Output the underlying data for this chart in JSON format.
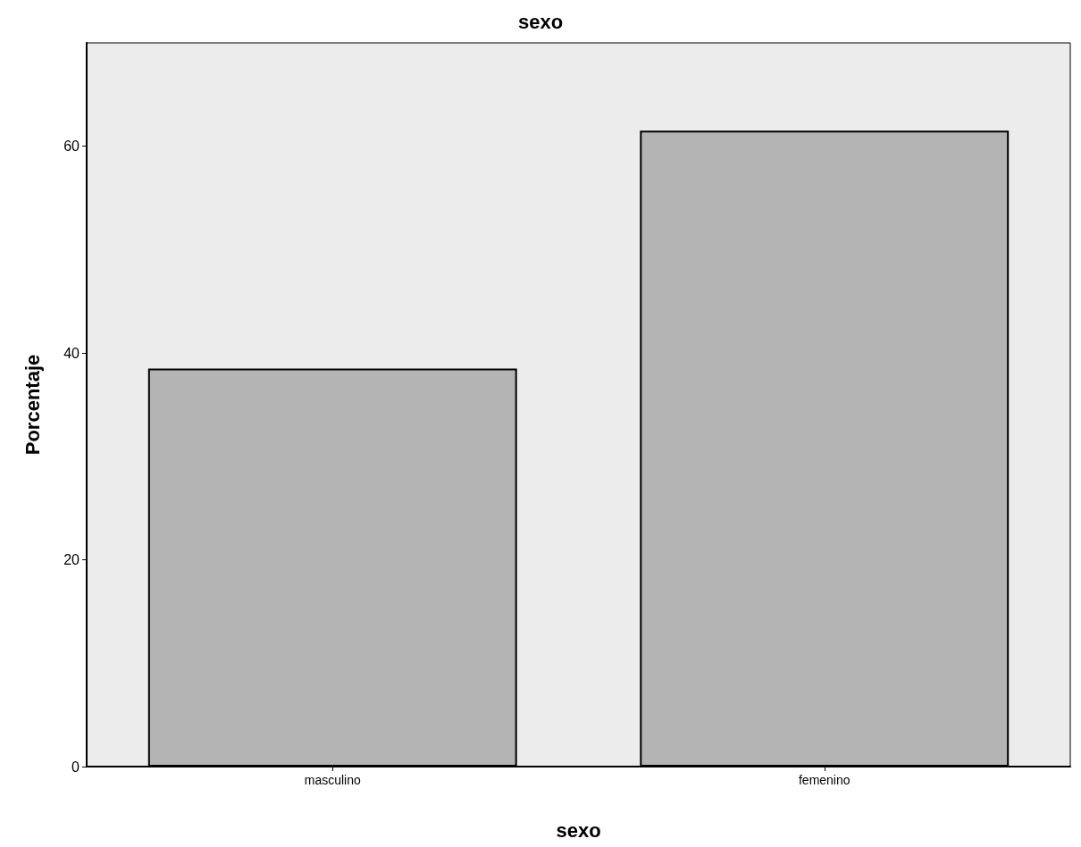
{
  "chart_data": {
    "type": "bar",
    "title": "sexo",
    "xlabel": "sexo",
    "ylabel": "Porcentaje",
    "categories": [
      "masculino",
      "femenino"
    ],
    "values": [
      38.5,
      61.5
    ],
    "color": "#b4b4b4",
    "ylim": [
      0,
      70
    ],
    "yticks": [
      0,
      20,
      40,
      60
    ],
    "grid": false
  }
}
